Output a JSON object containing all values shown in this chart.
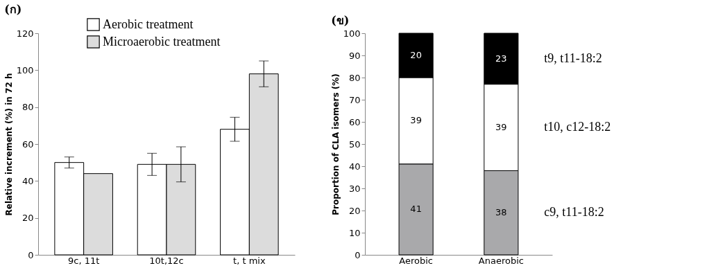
{
  "chart_data": [
    {
      "type": "bar",
      "title": "(ก)",
      "ylabel": "Relative increment (%) in 72 h",
      "categories": [
        "9c, 11t",
        "10t,12c",
        "t, t mix"
      ],
      "ylim": [
        0,
        120
      ],
      "yticks": [
        0,
        20,
        40,
        60,
        80,
        100,
        120
      ],
      "legend": "top",
      "grid": false,
      "series": [
        {
          "name": "Aerobic treatment",
          "color": "#ffffff",
          "values": [
            50,
            49,
            68
          ],
          "errors": [
            3,
            6,
            6.5
          ]
        },
        {
          "name": "Microaerobic treatment",
          "color": "#dcdcdc",
          "values": [
            44,
            49,
            98
          ],
          "errors": [
            null,
            9.5,
            7
          ]
        }
      ]
    },
    {
      "type": "bar",
      "title": "(ข)",
      "ylabel": "Proportion of CLA isomers (%)",
      "categories": [
        "Aerobic",
        "Anaerobic"
      ],
      "ylim": [
        0,
        100
      ],
      "yticks": [
        0,
        10,
        20,
        30,
        40,
        50,
        60,
        70,
        80,
        90,
        100
      ],
      "stacked": true,
      "data_labels": true,
      "grid": false,
      "series": [
        {
          "name": "c9, t11-18:2",
          "color": "#a9a9ab",
          "values": [
            41,
            38
          ]
        },
        {
          "name": "t10, c12-18:2",
          "color": "#ffffff",
          "values": [
            39,
            39
          ]
        },
        {
          "name": "t9, t11-18:2",
          "color": "#000000",
          "values": [
            20,
            23
          ]
        }
      ]
    }
  ]
}
